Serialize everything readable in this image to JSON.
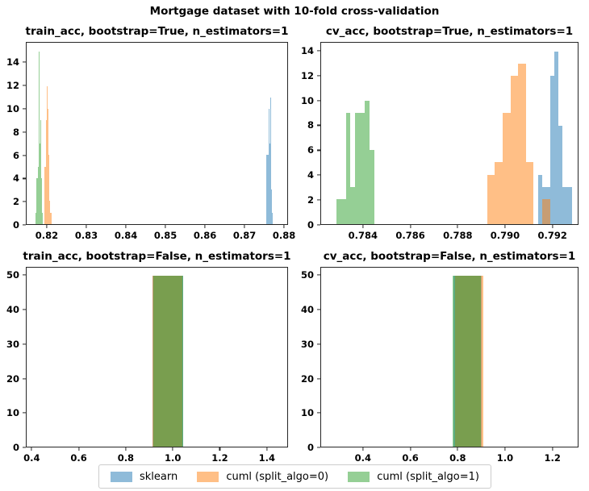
{
  "figure": {
    "suptitle": "Mortgage dataset with 10-fold cross-validation",
    "background": "#ffffff",
    "frame_color": "#262626",
    "series_colors": {
      "sklearn": "rgba(31,119,180,0.5)",
      "cuml_split_algo_0": "rgba(255,127,14,0.5)",
      "cuml_split_algo_1": "rgba(44,160,44,0.5)"
    },
    "blended_colors_on_white": {
      "sklearn": "#8fbbd9",
      "cuml_split_algo_0": "#ffbf86",
      "cuml_split_algo_1": "#95cf95",
      "green_over_orange": "#95af59",
      "orange_over_blue": "#c79d73"
    }
  },
  "legend": {
    "entries": [
      {
        "label": "sklearn",
        "color": "rgba(31,119,180,0.5)"
      },
      {
        "label": "cuml (split_algo=0)",
        "color": "rgba(255,127,14,0.5)"
      },
      {
        "label": "cuml (split_algo=1)",
        "color": "rgba(44,160,44,0.5)"
      }
    ]
  },
  "chart_data": [
    {
      "id": "train_acc_bootstrap_true",
      "type": "bar",
      "title": "train_acc, bootstrap=True, n_estimators=1",
      "xlabel": "",
      "ylabel": "",
      "grid": false,
      "xlim": [
        0.8147,
        0.881
      ],
      "ylim": [
        0,
        15.75
      ],
      "xtick_vals": [
        0.82,
        0.83,
        0.84,
        0.85,
        0.86,
        0.87,
        0.88
      ],
      "xtick_labels": [
        "0.82",
        "0.83",
        "0.84",
        "0.85",
        "0.86",
        "0.87",
        "0.88"
      ],
      "ytick_vals": [
        0,
        2,
        4,
        6,
        8,
        10,
        12,
        14
      ],
      "ytick_labels": [
        "0",
        "2",
        "4",
        "6",
        "8",
        "10",
        "12",
        "14"
      ],
      "series": [
        {
          "name": "sklearn",
          "color": "rgba(31,119,180,0.5)",
          "bars": [
            [
              0.8756,
              0.8758,
              6
            ],
            [
              0.8758,
              0.876,
              6
            ],
            [
              0.876,
              0.8762,
              6
            ],
            [
              0.8762,
              0.8764,
              10
            ],
            [
              0.8764,
              0.8766,
              7
            ],
            [
              0.8766,
              0.8768,
              11
            ],
            [
              0.8768,
              0.877,
              3
            ],
            [
              0.877,
              0.8772,
              1
            ]
          ]
        },
        {
          "name": "cuml (split_algo=0)",
          "color": "rgba(255,127,14,0.5)",
          "bars": [
            [
              0.8192,
              0.8194,
              5
            ],
            [
              0.8194,
              0.8196,
              5
            ],
            [
              0.8196,
              0.8198,
              9
            ],
            [
              0.8198,
              0.82,
              12
            ],
            [
              0.82,
              0.8202,
              10
            ],
            [
              0.8202,
              0.8204,
              6
            ],
            [
              0.8204,
              0.8206,
              2
            ],
            [
              0.8206,
              0.821,
              1
            ]
          ]
        },
        {
          "name": "cuml (split_algo=1)",
          "color": "rgba(44,160,44,0.5)",
          "bars": [
            [
              0.8169,
              0.8171,
              1
            ],
            [
              0.8171,
              0.8173,
              4
            ],
            [
              0.8173,
              0.8175,
              4
            ],
            [
              0.8175,
              0.8177,
              5
            ],
            [
              0.8177,
              0.8179,
              15
            ],
            [
              0.8179,
              0.8181,
              7
            ],
            [
              0.8181,
              0.8183,
              9
            ],
            [
              0.8183,
              0.8185,
              4
            ],
            [
              0.8185,
              0.8187,
              1
            ]
          ]
        }
      ]
    },
    {
      "id": "cv_acc_bootstrap_true",
      "type": "bar",
      "title": "cv_acc, bootstrap=True, n_estimators=1",
      "xlabel": "",
      "ylabel": "",
      "grid": false,
      "xlim": [
        0.7822,
        0.7931
      ],
      "ylim": [
        0,
        14.7
      ],
      "xtick_vals": [
        0.784,
        0.786,
        0.788,
        0.79,
        0.792
      ],
      "xtick_labels": [
        "0.784",
        "0.786",
        "0.788",
        "0.790",
        "0.792"
      ],
      "ytick_vals": [
        0,
        2,
        4,
        6,
        8,
        10,
        12,
        14
      ],
      "ytick_labels": [
        "0",
        "2",
        "4",
        "6",
        "8",
        "10",
        "12",
        "14"
      ],
      "series": [
        {
          "name": "sklearn",
          "color": "rgba(31,119,180,0.5)",
          "bars": [
            [
              0.79143,
              0.7916,
              4
            ],
            [
              0.7916,
              0.79177,
              3
            ],
            [
              0.79177,
              0.79194,
              3
            ],
            [
              0.79194,
              0.79211,
              12
            ],
            [
              0.79211,
              0.79228,
              14
            ],
            [
              0.79228,
              0.79245,
              8
            ],
            [
              0.79245,
              0.79262,
              3
            ],
            [
              0.79262,
              0.79285,
              3
            ]
          ]
        },
        {
          "name": "cuml (split_algo=0)",
          "color": "rgba(255,127,14,0.5)",
          "bars": [
            [
              0.78925,
              0.78958,
              4
            ],
            [
              0.78958,
              0.78991,
              5
            ],
            [
              0.78991,
              0.79024,
              9
            ],
            [
              0.79024,
              0.79057,
              12
            ],
            [
              0.79057,
              0.7909,
              13
            ],
            [
              0.7909,
              0.79123,
              5
            ],
            [
              0.7916,
              0.79195,
              2
            ]
          ]
        },
        {
          "name": "cuml (split_algo=1)",
          "color": "rgba(44,160,44,0.5)",
          "bars": [
            [
              0.78285,
              0.78305,
              2
            ],
            [
              0.78305,
              0.78325,
              2
            ],
            [
              0.78325,
              0.78345,
              9
            ],
            [
              0.78345,
              0.78365,
              3
            ],
            [
              0.78365,
              0.78385,
              9
            ],
            [
              0.78385,
              0.78405,
              9
            ],
            [
              0.78405,
              0.78425,
              10
            ],
            [
              0.78425,
              0.78445,
              6
            ]
          ]
        }
      ]
    },
    {
      "id": "train_acc_bootstrap_false",
      "type": "bar",
      "title": "train_acc, bootstrap=False, n_estimators=1",
      "xlabel": "",
      "ylabel": "",
      "grid": false,
      "xlim": [
        0.375,
        1.49
      ],
      "ylim": [
        0,
        52.4
      ],
      "xtick_vals": [
        0.4,
        0.6,
        0.8,
        1.0,
        1.2,
        1.4
      ],
      "xtick_labels": [
        "0.4",
        "0.6",
        "0.8",
        "1.0",
        "1.2",
        "1.4"
      ],
      "ytick_vals": [
        0,
        10,
        20,
        30,
        40,
        50
      ],
      "ytick_labels": [
        "0",
        "10",
        "20",
        "30",
        "40",
        "50"
      ],
      "series": [
        {
          "name": "sklearn",
          "color": "rgba(31,119,180,0.5)",
          "bars": [
            [
              0.915,
              1.043,
              50
            ]
          ]
        },
        {
          "name": "cuml (split_algo=0)",
          "color": "rgba(255,127,14,0.5)",
          "bars": [
            [
              0.912,
              1.04,
              50
            ]
          ]
        },
        {
          "name": "cuml (split_algo=1)",
          "color": "rgba(44,160,44,0.5)",
          "bars": [
            [
              0.918,
              1.046,
              50
            ]
          ]
        }
      ]
    },
    {
      "id": "cv_acc_bootstrap_false",
      "type": "bar",
      "title": "cv_acc, bootstrap=False, n_estimators=1",
      "xlabel": "",
      "ylabel": "",
      "grid": false,
      "xlim": [
        0.22,
        1.31
      ],
      "ylim": [
        0,
        52.4
      ],
      "xtick_vals": [
        0.4,
        0.6,
        0.8,
        1.0,
        1.2
      ],
      "xtick_labels": [
        "0.4",
        "0.6",
        "0.8",
        "1.0",
        "1.2"
      ],
      "ytick_vals": [
        0,
        10,
        20,
        30,
        40,
        50
      ],
      "ytick_labels": [
        "0",
        "10",
        "20",
        "30",
        "40",
        "50"
      ],
      "series": [
        {
          "name": "sklearn",
          "color": "rgba(31,119,180,0.5)",
          "bars": [
            [
              0.783,
              0.903,
              50
            ]
          ]
        },
        {
          "name": "cuml (split_algo=0)",
          "color": "rgba(255,127,14,0.5)",
          "bars": [
            [
              0.79,
              0.91,
              50
            ]
          ]
        },
        {
          "name": "cuml (split_algo=1)",
          "color": "rgba(44,160,44,0.5)",
          "bars": [
            [
              0.78,
              0.9,
              50
            ]
          ]
        }
      ]
    }
  ]
}
